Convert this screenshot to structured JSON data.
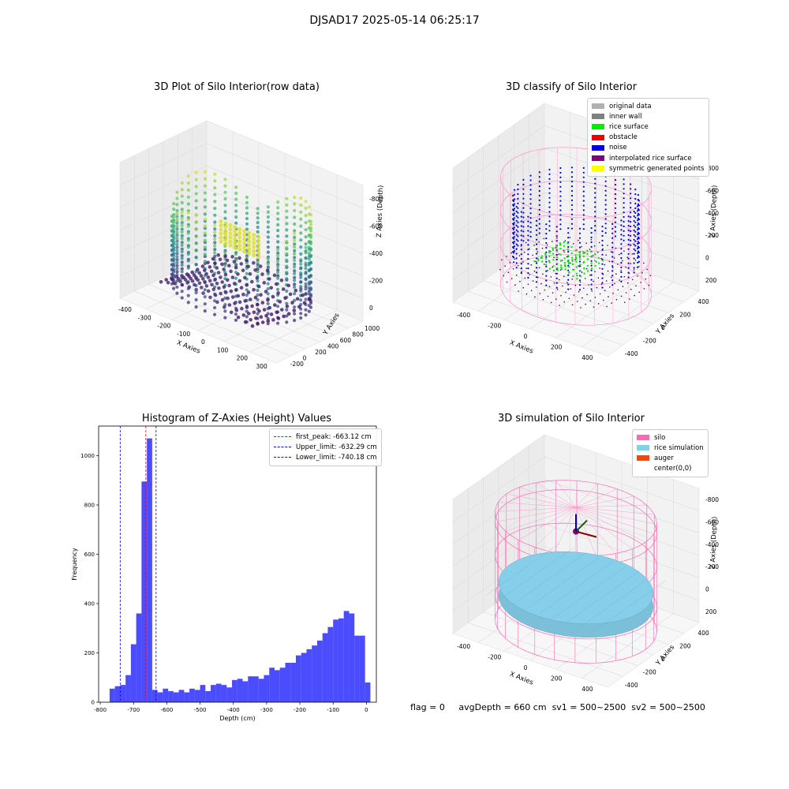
{
  "suptitle": "DJSAD17 2025-05-14 06:25:17",
  "panels": {
    "raw": {
      "title": "3D Plot of Silo Interior(row data)",
      "xlabel": "X Axies",
      "ylabel": "Y Axies",
      "zlabel": "Z Axies (Depth)",
      "xticks": [
        "-400",
        "-300",
        "-200",
        "-100",
        "0",
        "100",
        "200",
        "300"
      ],
      "yticks": [
        "-200",
        "0",
        "200",
        "400",
        "600",
        "800",
        "1000"
      ],
      "zticks": [
        "0",
        "-200",
        "-400",
        "-600",
        "-800"
      ]
    },
    "classify": {
      "title": "3D classify of Silo Interior",
      "xlabel": "X Axies",
      "ylabel": "Y Axies",
      "zlabel": "Z Axies (Depth)",
      "xticks": [
        "-400",
        "-200",
        "0",
        "200",
        "400"
      ],
      "yticks": [
        "-400",
        "-200",
        "0",
        "200",
        "400"
      ],
      "zticks": [
        "200",
        "0",
        "-200",
        "-400",
        "-600",
        "-800"
      ],
      "legend": [
        {
          "label": "original data",
          "color": "#b0b0b0"
        },
        {
          "label": "inner wall",
          "color": "#808080"
        },
        {
          "label": "rice surface",
          "color": "#00ee00"
        },
        {
          "label": "obstacle",
          "color": "#ee0000"
        },
        {
          "label": "noise",
          "color": "#0000dd"
        },
        {
          "label": "interpolated rice surface",
          "color": "#800080"
        },
        {
          "label": "symmetric generated points",
          "color": "#ffff00"
        }
      ]
    },
    "simulation": {
      "title": "3D simulation of Silo Interior",
      "xlabel": "X Axies",
      "ylabel": "Y Axies",
      "zlabel": "Z Axies (Depth)",
      "xticks": [
        "-400",
        "-200",
        "0",
        "200",
        "400"
      ],
      "yticks": [
        "-400",
        "-200",
        "0",
        "200",
        "400"
      ],
      "zticks": [
        "200",
        "0",
        "-200",
        "-400",
        "-600",
        "-800"
      ],
      "legend": [
        {
          "label": "silo",
          "color": "#ff69b4"
        },
        {
          "label": "rice simulation",
          "color": "#87ceeb"
        },
        {
          "label": "auger",
          "color": "#ff4500"
        },
        {
          "label": "center(0,0)",
          "color": "#ffffff"
        }
      ]
    }
  },
  "chart_data": {
    "type": "bar",
    "title": "Histogram of Z-Axies (Height) Values",
    "xlabel": "Depth (cm)",
    "ylabel": "Frequency",
    "xlim": [
      -805,
      30
    ],
    "ylim": [
      0,
      1120
    ],
    "xticks": [
      -800,
      -700,
      -600,
      -500,
      -400,
      -300,
      -200,
      -100,
      0
    ],
    "yticks": [
      0,
      200,
      400,
      600,
      800,
      1000
    ],
    "bin_width": 16.0,
    "bin_start": -772,
    "values": [
      55,
      65,
      70,
      110,
      235,
      360,
      895,
      1070,
      50,
      40,
      55,
      45,
      40,
      50,
      40,
      55,
      50,
      70,
      45,
      70,
      75,
      70,
      60,
      90,
      95,
      85,
      105,
      105,
      95,
      110,
      140,
      130,
      140,
      160,
      160,
      190,
      200,
      215,
      230,
      250,
      280,
      305,
      335,
      340,
      370,
      360,
      270,
      270,
      80
    ],
    "bar_color": "#0000ff",
    "vlines": [
      {
        "label": "first_peak: -663.12 cm",
        "x": -663.12,
        "color": "#ff0000"
      },
      {
        "label": "Upper_limit: -632.29 cm",
        "x": -632.29,
        "color": "#0000ff"
      },
      {
        "label": "Lower_limit: -740.18 cm",
        "x": -740.18,
        "color": "#0000ff"
      }
    ],
    "legend_position": "top-right"
  },
  "status": {
    "flag": "flag = 0",
    "avg": "avgDepth = 660 cm",
    "sv1": "sv1 = 500~2500",
    "sv2": "sv2 = 500~2500"
  }
}
